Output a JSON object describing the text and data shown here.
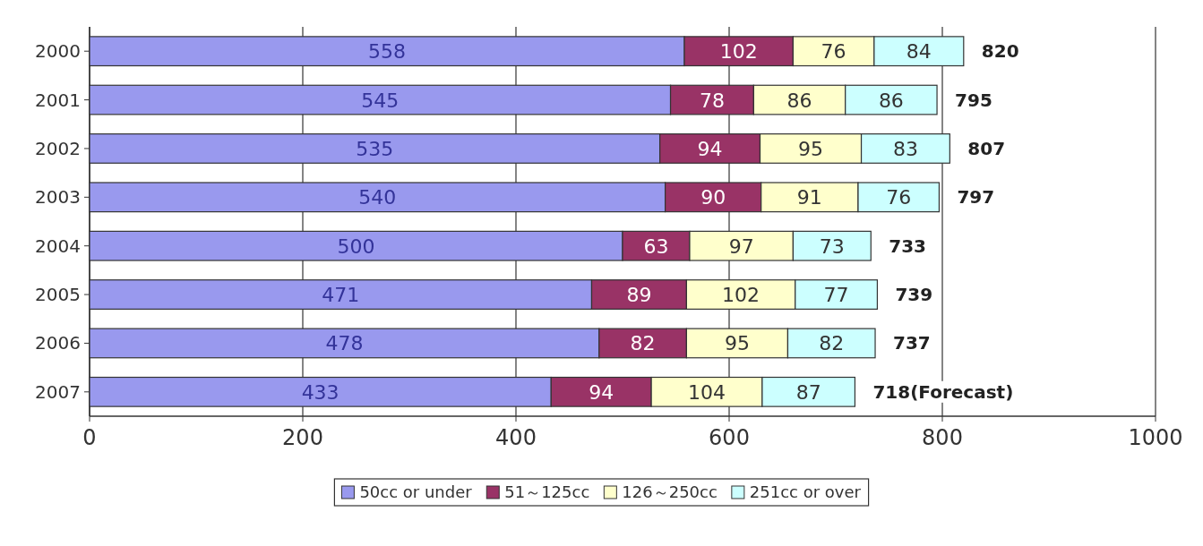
{
  "chart_data": {
    "type": "bar",
    "orientation": "horizontal",
    "stacked": true,
    "categories": [
      "2000",
      "2001",
      "2002",
      "2003",
      "2004",
      "2005",
      "2006",
      "2007"
    ],
    "series": [
      {
        "name": "50cc or under",
        "color": "#9999ee",
        "values": [
          558,
          545,
          535,
          540,
          500,
          471,
          478,
          433
        ]
      },
      {
        "name": "51～125cc",
        "color": "#993366",
        "values": [
          102,
          78,
          94,
          90,
          63,
          89,
          82,
          94
        ]
      },
      {
        "name": "126～250cc",
        "color": "#ffffcc",
        "values": [
          76,
          86,
          95,
          91,
          97,
          102,
          95,
          104
        ]
      },
      {
        "name": "251cc or over",
        "color": "#ccffff",
        "values": [
          84,
          86,
          83,
          76,
          73,
          77,
          82,
          87
        ]
      }
    ],
    "totals": [
      "820",
      "795",
      "807",
      "797",
      "733",
      "739",
      "737",
      "718(Forecast)"
    ],
    "data_labels": true,
    "xlim": [
      0,
      1000
    ],
    "xticks": [
      0,
      200,
      400,
      600,
      800,
      1000
    ],
    "grid": "x",
    "legend": "bottom"
  }
}
